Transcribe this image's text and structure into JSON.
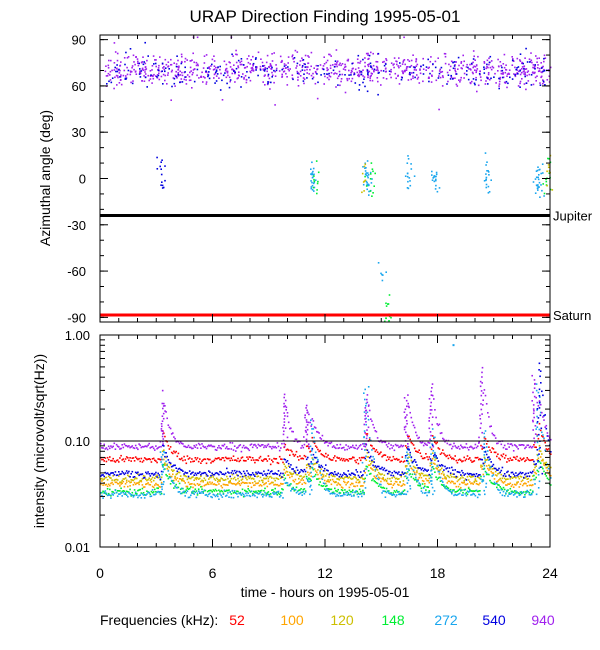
{
  "title": "URAP Direction Finding  1995-05-01",
  "xlabel": "time - hours on 1995-05-01",
  "legend_label": "Frequencies (kHz):",
  "chart_data": [
    {
      "type": "scatter",
      "panel": "top",
      "ylabel": "Azimuthal angle (deg)",
      "xlim": [
        0,
        24
      ],
      "ylim": [
        -93,
        93
      ],
      "y_ticks": [
        90,
        60,
        30,
        0,
        -30,
        -60,
        -90
      ],
      "y_tick_labels": [
        "90",
        "60",
        "30",
        "0",
        "-30",
        "-60",
        "-90"
      ],
      "x_ticks": [
        0,
        6,
        12,
        18,
        24
      ],
      "reference_lines": [
        {
          "name": "Jupiter",
          "value": -24,
          "color": "#000000"
        },
        {
          "name": "Saturn",
          "value": -88.5,
          "color": "#ff0000"
        }
      ],
      "clusters": [
        {
          "freq": "940",
          "x_range": [
            0.2,
            24
          ],
          "y_center": 71,
          "y_spread": 5,
          "count": 900
        },
        {
          "freq": "540",
          "x_range": [
            0.2,
            24
          ],
          "y_center": 70,
          "y_spread": 5,
          "count": 260
        },
        {
          "freq": "540",
          "x_center": 3.3,
          "y_center": 4,
          "count": 14
        },
        {
          "freq": "272",
          "x_center": 11.3,
          "y_center": -1,
          "count": 22
        },
        {
          "freq": "148",
          "x_center": 11.4,
          "y_center": -3,
          "count": 10
        },
        {
          "freq": "272",
          "x_center": 14.2,
          "y_center": 0,
          "count": 28
        },
        {
          "freq": "148",
          "x_center": 14.4,
          "y_center": -1,
          "count": 12
        },
        {
          "freq": "120",
          "x_center": 14.1,
          "y_center": 2,
          "count": 8
        },
        {
          "freq": "272",
          "x_center": 16.4,
          "y_center": 4,
          "count": 16
        },
        {
          "freq": "272",
          "x_center": 17.8,
          "y_center": 0,
          "count": 18
        },
        {
          "freq": "272",
          "x_center": 20.6,
          "y_center": 0,
          "count": 18
        },
        {
          "freq": "272",
          "x_center": 23.4,
          "y_center": 0,
          "count": 28
        },
        {
          "freq": "148",
          "x_center": 23.8,
          "y_center": 3,
          "count": 12
        },
        {
          "freq": "120",
          "x_center": 23.9,
          "y_center": 6,
          "count": 8
        },
        {
          "freq": "148",
          "x_center": 15.3,
          "y_center": -85,
          "count": 12
        },
        {
          "freq": "272",
          "x_center": 15.0,
          "y_center": -60,
          "count": 6
        }
      ]
    },
    {
      "type": "scatter",
      "panel": "bottom",
      "ylabel": "intensity (microvolt/sqrt(Hz))",
      "xlim": [
        0,
        24
      ],
      "ylim": [
        0.01,
        1.0
      ],
      "yscale": "log",
      "y_ticks": [
        1.0,
        0.1,
        0.01
      ],
      "y_tick_labels": [
        "1.00",
        "0.10",
        "0.01"
      ],
      "x_ticks": [
        0,
        6,
        12,
        18,
        24
      ],
      "x_tick_labels": [
        "0",
        "6",
        "12",
        "18",
        "24"
      ],
      "reference_lines": [
        {
          "name": "0.10",
          "value": 0.1,
          "color": "#000000"
        }
      ],
      "series": [
        {
          "name": "52",
          "baseline": 0.068
        },
        {
          "name": "100",
          "baseline": 0.04
        },
        {
          "name": "120",
          "baseline": 0.045
        },
        {
          "name": "148",
          "baseline": 0.034
        },
        {
          "name": "272",
          "baseline": 0.032
        },
        {
          "name": "540",
          "baseline": 0.05
        },
        {
          "name": "940",
          "baseline": 0.09
        }
      ],
      "bursts": [
        {
          "x": 3.3,
          "freq": "940",
          "peak": 0.23
        },
        {
          "x": 3.3,
          "freq": "272",
          "peak": 0.08
        },
        {
          "x": 9.8,
          "freq": "940",
          "peak": 0.28
        },
        {
          "x": 11.0,
          "freq": "940",
          "peak": 0.22
        },
        {
          "x": 11.3,
          "freq": "272",
          "peak": 0.16
        },
        {
          "x": 14.1,
          "freq": "272",
          "peak": 0.33
        },
        {
          "x": 14.2,
          "freq": "940",
          "peak": 0.25
        },
        {
          "x": 16.3,
          "freq": "940",
          "peak": 0.26
        },
        {
          "x": 16.4,
          "freq": "272",
          "peak": 0.09
        },
        {
          "x": 17.6,
          "freq": "940",
          "peak": 0.35
        },
        {
          "x": 17.7,
          "freq": "272",
          "peak": 0.11
        },
        {
          "x": 20.3,
          "freq": "940",
          "peak": 0.5
        },
        {
          "x": 20.5,
          "freq": "272",
          "peak": 0.12
        },
        {
          "x": 23.1,
          "freq": "940",
          "peak": 0.42
        },
        {
          "x": 23.3,
          "freq": "272",
          "peak": 0.35
        },
        {
          "x": 23.4,
          "freq": "540",
          "peak": 0.55
        }
      ],
      "outliers": [
        {
          "x": 18.8,
          "freq": "272",
          "y": 0.82
        }
      ]
    }
  ],
  "frequencies": [
    {
      "label": "52",
      "color": "#ff0000"
    },
    {
      "label": "100",
      "color": "#ffa500"
    },
    {
      "label": "120",
      "color": "#cdbf00"
    },
    {
      "label": "148",
      "color": "#00ee33"
    },
    {
      "label": "272",
      "color": "#19a6ee"
    },
    {
      "label": "540",
      "color": "#0000e0"
    },
    {
      "label": "940",
      "color": "#a020ee"
    }
  ]
}
